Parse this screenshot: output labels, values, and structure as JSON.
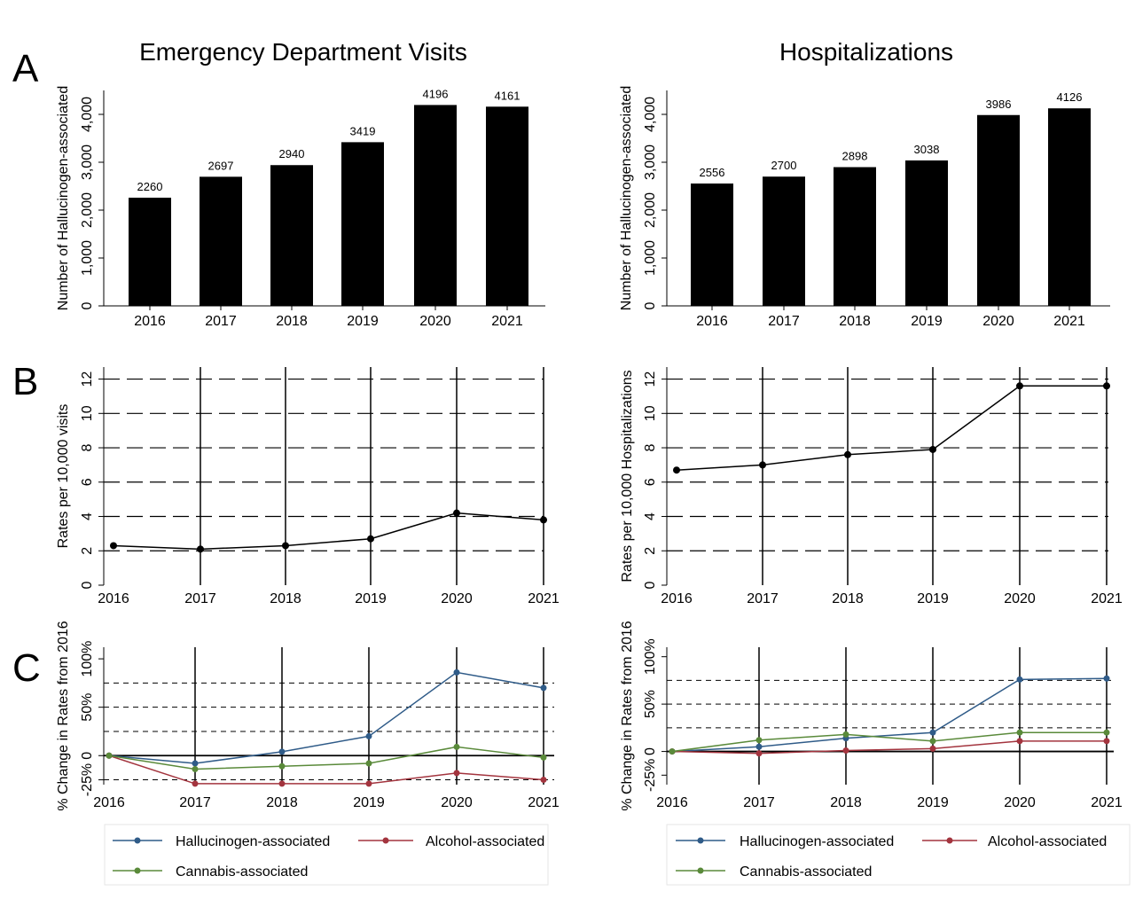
{
  "panel_letters": {
    "a": "A",
    "b": "B",
    "c": "C"
  },
  "series_colors": {
    "hallucinogen": "#2f5b88",
    "alcohol": "#a3343e",
    "cannabis": "#5a8a3a"
  },
  "legend": {
    "hallucinogen": "Hallucinogen-associated",
    "alcohol": "Alcohol-associated",
    "cannabis": "Cannabis-associated"
  },
  "chart_data": [
    {
      "id": "ed-counts",
      "type": "bar",
      "title": "Emergency Department Visits",
      "ylabel": "Number of Hallucinogen-associated",
      "categories": [
        "2016",
        "2017",
        "2018",
        "2019",
        "2020",
        "2021"
      ],
      "values": [
        2260,
        2697,
        2940,
        3419,
        4196,
        4161
      ],
      "data_labels": [
        "2260",
        "2697",
        "2940",
        "3419",
        "4196",
        "4161"
      ],
      "ylim": [
        0,
        4500
      ],
      "yticks": [
        0,
        1000,
        2000,
        3000,
        4000
      ],
      "ytick_labels": [
        "0",
        "1,000",
        "2,000",
        "3,000",
        "4,000"
      ],
      "bar_color": "#000000"
    },
    {
      "id": "hosp-counts",
      "type": "bar",
      "title": "Hospitalizations",
      "ylabel": "Number of Hallucinogen-associated",
      "categories": [
        "2016",
        "2017",
        "2018",
        "2019",
        "2020",
        "2021"
      ],
      "values": [
        2556,
        2700,
        2898,
        3038,
        3986,
        4126
      ],
      "data_labels": [
        "2556",
        "2700",
        "2898",
        "3038",
        "3986",
        "4126"
      ],
      "ylim": [
        0,
        4500
      ],
      "yticks": [
        0,
        1000,
        2000,
        3000,
        4000
      ],
      "ytick_labels": [
        "0",
        "1,000",
        "2,000",
        "3,000",
        "4,000"
      ],
      "bar_color": "#000000"
    },
    {
      "id": "ed-rates",
      "type": "line",
      "ylabel": "Rates per 10,000 visits",
      "x": [
        "2016",
        "2017",
        "2018",
        "2019",
        "2020",
        "2021"
      ],
      "values": [
        2.3,
        2.1,
        2.3,
        2.7,
        4.2,
        3.8
      ],
      "ylim": [
        0,
        12.7
      ],
      "yticks": [
        0,
        2,
        4,
        6,
        8,
        10,
        12
      ],
      "ytick_labels": [
        "0",
        "2",
        "4",
        "6",
        "8",
        "10",
        "12"
      ],
      "grid": true
    },
    {
      "id": "hosp-rates",
      "type": "line",
      "ylabel": "Rates per 10,000 Hospitalizations",
      "x": [
        "2016",
        "2017",
        "2018",
        "2019",
        "2020",
        "2021"
      ],
      "values": [
        6.7,
        7.0,
        7.6,
        7.9,
        11.6,
        11.6
      ],
      "ylim": [
        0,
        12.7
      ],
      "yticks": [
        0,
        2,
        4,
        6,
        8,
        10,
        12
      ],
      "ytick_labels": [
        "0",
        "2",
        "4",
        "6",
        "8",
        "10",
        "12"
      ],
      "grid": true
    },
    {
      "id": "ed-change",
      "type": "line",
      "ylabel": "% Change in Rates from 2016",
      "x": [
        "2016",
        "2017",
        "2018",
        "2019",
        "2020",
        "2021"
      ],
      "series": [
        {
          "key": "hallucinogen",
          "values": [
            0,
            -8,
            4,
            20,
            86,
            70
          ]
        },
        {
          "key": "alcohol",
          "values": [
            0,
            -29,
            -29,
            -29,
            -18,
            -25
          ]
        },
        {
          "key": "cannabis",
          "values": [
            0,
            -14,
            -11,
            -8,
            9,
            -2
          ]
        }
      ],
      "ylim": [
        -30,
        112
      ],
      "yticks": [
        -25,
        0,
        50,
        100
      ],
      "ytick_labels": [
        "-25%",
        "0",
        "50%",
        "100%"
      ],
      "dashed_grid": [
        -25,
        25,
        50,
        75
      ],
      "zero_line": 0,
      "legend_position": "bottom"
    },
    {
      "id": "hosp-change",
      "type": "line",
      "ylabel": "% Change in Rates from 2016",
      "x": [
        "2016",
        "2017",
        "2018",
        "2019",
        "2020",
        "2021"
      ],
      "series": [
        {
          "key": "hallucinogen",
          "values": [
            0,
            5,
            14,
            20,
            76,
            77
          ]
        },
        {
          "key": "alcohol",
          "values": [
            0,
            -2,
            1,
            3,
            11,
            11
          ]
        },
        {
          "key": "cannabis",
          "values": [
            0,
            12,
            18,
            11,
            20,
            20
          ]
        }
      ],
      "ylim": [
        -35,
        110
      ],
      "yticks": [
        -25,
        0,
        50,
        100
      ],
      "ytick_labels": [
        "-25%",
        "0",
        "50%",
        "100%"
      ],
      "dashed_grid": [
        25,
        50,
        75
      ],
      "zero_line": 0,
      "legend_position": "bottom"
    }
  ]
}
